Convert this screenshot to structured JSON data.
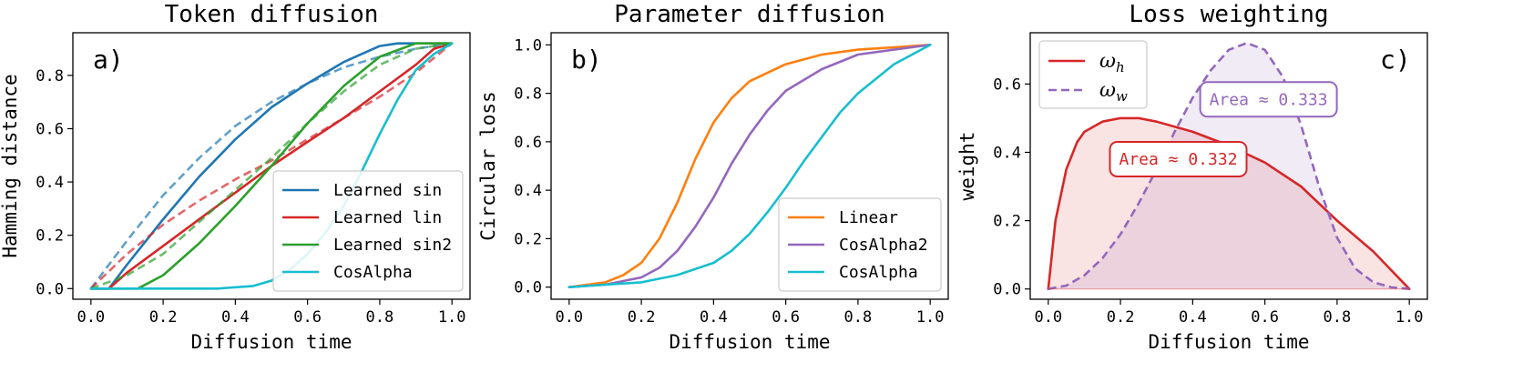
{
  "chart_data": [
    {
      "type": "line",
      "panel_label": "a)",
      "title": "Token diffusion",
      "xlabel": "Diffusion time",
      "ylabel": "Hamming distance",
      "xlim": [
        -0.05,
        1.05
      ],
      "ylim": [
        -0.04,
        0.96
      ],
      "xticks": [
        "0.0",
        "0.2",
        "0.4",
        "0.6",
        "0.8",
        "1.0"
      ],
      "yticks": [
        "0.0",
        "0.2",
        "0.4",
        "0.6",
        "0.8"
      ],
      "legend_position": "lower-right",
      "series": [
        {
          "name": "Learned sin",
          "color": "#1f77b4",
          "style": "solid",
          "legend": true,
          "x": [
            0,
            0.05,
            0.1,
            0.2,
            0.3,
            0.4,
            0.5,
            0.6,
            0.7,
            0.8,
            0.85,
            0.9,
            1.0
          ],
          "y": [
            0,
            0,
            0.09,
            0.26,
            0.42,
            0.56,
            0.68,
            0.77,
            0.85,
            0.91,
            0.92,
            0.92,
            0.92
          ]
        },
        {
          "name": "Learned sin dashed",
          "color": "#1f77b4",
          "style": "dashed",
          "legend": false,
          "x": [
            0,
            0.1,
            0.2,
            0.3,
            0.4,
            0.5,
            0.6,
            0.7,
            0.8,
            0.9,
            1.0
          ],
          "y": [
            0,
            0.18,
            0.35,
            0.49,
            0.61,
            0.7,
            0.77,
            0.83,
            0.87,
            0.9,
            0.92
          ]
        },
        {
          "name": "Learned lin",
          "color": "#d62728",
          "style": "solid",
          "legend": true,
          "x": [
            0,
            0.05,
            0.1,
            0.2,
            0.3,
            0.4,
            0.5,
            0.6,
            0.7,
            0.8,
            0.9,
            0.95,
            1.0
          ],
          "y": [
            0,
            0,
            0.06,
            0.16,
            0.26,
            0.36,
            0.46,
            0.55,
            0.64,
            0.74,
            0.84,
            0.9,
            0.92
          ]
        },
        {
          "name": "Learned lin dashed",
          "color": "#d62728",
          "style": "dashed",
          "legend": false,
          "x": [
            0,
            0.1,
            0.2,
            0.3,
            0.4,
            0.5,
            0.6,
            0.7,
            0.8,
            0.9,
            1.0
          ],
          "y": [
            0,
            0.13,
            0.24,
            0.33,
            0.41,
            0.48,
            0.56,
            0.64,
            0.72,
            0.81,
            0.92
          ]
        },
        {
          "name": "Learned sin2",
          "color": "#2ca02c",
          "style": "solid",
          "legend": true,
          "x": [
            0,
            0.13,
            0.2,
            0.3,
            0.4,
            0.5,
            0.6,
            0.7,
            0.8,
            0.9,
            0.95,
            1.0
          ],
          "y": [
            0,
            0,
            0.05,
            0.17,
            0.31,
            0.46,
            0.62,
            0.76,
            0.87,
            0.92,
            0.92,
            0.92
          ]
        },
        {
          "name": "Learned sin2 dashed",
          "color": "#2ca02c",
          "style": "dashed",
          "legend": false,
          "x": [
            0,
            0.1,
            0.2,
            0.3,
            0.4,
            0.5,
            0.6,
            0.7,
            0.8,
            0.9,
            1.0
          ],
          "y": [
            0,
            0.05,
            0.13,
            0.25,
            0.37,
            0.49,
            0.62,
            0.74,
            0.84,
            0.9,
            0.92
          ]
        },
        {
          "name": "CosAlpha",
          "color": "#17becf",
          "style": "solid",
          "legend": true,
          "x": [
            0,
            0.35,
            0.45,
            0.5,
            0.55,
            0.6,
            0.65,
            0.7,
            0.75,
            0.8,
            0.85,
            0.9,
            0.95,
            1.0
          ],
          "y": [
            0,
            0,
            0.01,
            0.03,
            0.07,
            0.13,
            0.21,
            0.31,
            0.44,
            0.58,
            0.71,
            0.82,
            0.88,
            0.92
          ]
        }
      ]
    },
    {
      "type": "line",
      "panel_label": "b)",
      "title": "Parameter diffusion",
      "xlabel": "Diffusion time",
      "ylabel": "Circular loss",
      "xlim": [
        -0.05,
        1.05
      ],
      "ylim": [
        -0.05,
        1.05
      ],
      "xticks": [
        "0.0",
        "0.2",
        "0.4",
        "0.6",
        "0.8",
        "1.0"
      ],
      "yticks": [
        "0.0",
        "0.2",
        "0.4",
        "0.6",
        "0.8",
        "1.0"
      ],
      "legend_position": "lower-right",
      "series": [
        {
          "name": "Linear",
          "color": "#ff7f0e",
          "style": "solid",
          "legend": true,
          "x": [
            0,
            0.1,
            0.15,
            0.2,
            0.25,
            0.3,
            0.35,
            0.4,
            0.45,
            0.5,
            0.6,
            0.7,
            0.8,
            0.9,
            1.0
          ],
          "y": [
            0,
            0.02,
            0.05,
            0.1,
            0.2,
            0.35,
            0.53,
            0.68,
            0.78,
            0.85,
            0.92,
            0.96,
            0.98,
            0.99,
            1.0
          ]
        },
        {
          "name": "CosAlpha2",
          "color": "#9467bd",
          "style": "solid",
          "legend": true,
          "x": [
            0,
            0.1,
            0.2,
            0.25,
            0.3,
            0.35,
            0.4,
            0.45,
            0.5,
            0.55,
            0.6,
            0.7,
            0.8,
            0.9,
            1.0
          ],
          "y": [
            0,
            0.01,
            0.04,
            0.08,
            0.15,
            0.25,
            0.37,
            0.51,
            0.63,
            0.73,
            0.81,
            0.9,
            0.96,
            0.98,
            1.0
          ]
        },
        {
          "name": "CosAlpha",
          "color": "#17becf",
          "style": "solid",
          "legend": true,
          "x": [
            0,
            0.1,
            0.2,
            0.3,
            0.4,
            0.45,
            0.5,
            0.55,
            0.6,
            0.65,
            0.7,
            0.75,
            0.8,
            0.9,
            1.0
          ],
          "y": [
            0,
            0.01,
            0.02,
            0.05,
            0.1,
            0.15,
            0.22,
            0.31,
            0.41,
            0.52,
            0.62,
            0.72,
            0.8,
            0.92,
            1.0
          ]
        }
      ]
    },
    {
      "type": "area",
      "panel_label": "c)",
      "title": "Loss weighting",
      "xlabel": "Diffusion time",
      "ylabel": "weight",
      "xlim": [
        -0.05,
        1.05
      ],
      "ylim": [
        -0.03,
        0.75
      ],
      "xticks": [
        "0.0",
        "0.2",
        "0.4",
        "0.6",
        "0.8",
        "1.0"
      ],
      "yticks": [
        "0.0",
        "0.2",
        "0.4",
        "0.6"
      ],
      "legend_position": "upper-left",
      "series": [
        {
          "name": "ω",
          "sub": "h",
          "color": "#d62728",
          "style": "solid",
          "legend": true,
          "x": [
            0,
            0.02,
            0.05,
            0.08,
            0.1,
            0.15,
            0.2,
            0.25,
            0.3,
            0.4,
            0.5,
            0.6,
            0.7,
            0.8,
            0.9,
            1.0
          ],
          "y": [
            0,
            0.2,
            0.35,
            0.43,
            0.46,
            0.49,
            0.5,
            0.5,
            0.49,
            0.46,
            0.42,
            0.37,
            0.3,
            0.2,
            0.11,
            0
          ]
        },
        {
          "name": "ω",
          "sub": "w",
          "color": "#9467bd",
          "style": "dashed",
          "legend": true,
          "x": [
            0,
            0.05,
            0.1,
            0.15,
            0.2,
            0.25,
            0.3,
            0.35,
            0.4,
            0.45,
            0.5,
            0.55,
            0.6,
            0.65,
            0.7,
            0.75,
            0.8,
            0.85,
            0.9,
            0.95,
            1.0
          ],
          "y": [
            0,
            0.01,
            0.04,
            0.09,
            0.16,
            0.25,
            0.35,
            0.46,
            0.56,
            0.64,
            0.7,
            0.72,
            0.7,
            0.62,
            0.48,
            0.3,
            0.15,
            0.06,
            0.02,
            0.005,
            0
          ]
        }
      ],
      "annotations": [
        {
          "text": "Area ≈ 0.333",
          "color": "#9467bd",
          "x": 0.61,
          "y": 0.555
        },
        {
          "text": "Area ≈ 0.332",
          "color": "#d62728",
          "x": 0.36,
          "y": 0.38
        }
      ]
    }
  ]
}
